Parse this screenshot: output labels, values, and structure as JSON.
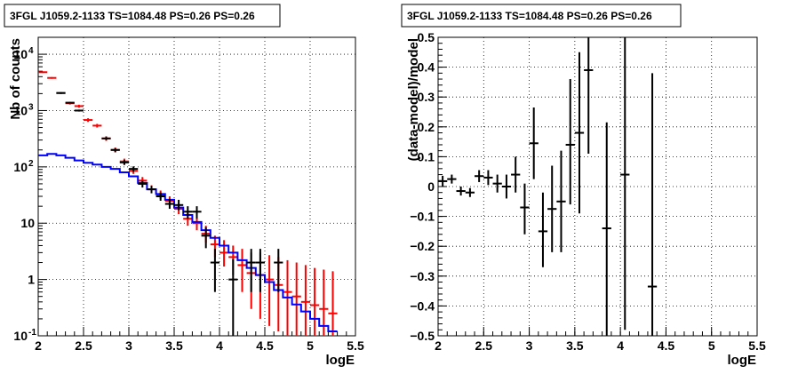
{
  "chart_data": [
    {
      "type": "scatter",
      "title": "3FGL J1059.2-1133 TS=1084.48 PS=0.26 PS=0.26",
      "xlabel": "logE",
      "ylabel": "Nb of counts",
      "xlim": [
        2,
        5.5
      ],
      "ylim": [
        0.1,
        20000
      ],
      "yscale": "log",
      "grid": true,
      "x_ticks": [
        "2",
        "2.5",
        "3",
        "3.5",
        "4",
        "4.5",
        "5",
        "5.5"
      ],
      "y_ticks": [
        {
          "value": 0.1,
          "label": "10",
          "exp": "-1"
        },
        {
          "value": 1,
          "label": "1",
          "exp": ""
        },
        {
          "value": 10,
          "label": "10",
          "exp": ""
        },
        {
          "value": 100,
          "label": "10",
          "exp": "2"
        },
        {
          "value": 1000,
          "label": "10",
          "exp": "3"
        },
        {
          "value": 10000,
          "label": "10",
          "exp": "4"
        }
      ],
      "series": [
        {
          "color": "#ff0000",
          "style": "errorbar",
          "points": [
            {
              "x": 2.05,
              "y": 4800,
              "lo": 4650,
              "hi": 4950
            },
            {
              "x": 2.15,
              "y": 3800,
              "lo": 3670,
              "hi": 3930
            },
            {
              "x": 2.25,
              "y": 2050,
              "lo": 1960,
              "hi": 2140
            },
            {
              "x": 2.35,
              "y": 1350,
              "lo": 1280,
              "hi": 1420
            },
            {
              "x": 2.45,
              "y": 1200,
              "lo": 1130,
              "hi": 1270
            },
            {
              "x": 2.55,
              "y": 680,
              "lo": 630,
              "hi": 730
            },
            {
              "x": 2.65,
              "y": 540,
              "lo": 500,
              "hi": 580
            },
            {
              "x": 2.75,
              "y": 320,
              "lo": 290,
              "hi": 350
            },
            {
              "x": 2.85,
              "y": 200,
              "lo": 180,
              "hi": 220
            },
            {
              "x": 2.95,
              "y": 125,
              "lo": 110,
              "hi": 140
            },
            {
              "x": 3.05,
              "y": 85,
              "lo": 75,
              "hi": 96
            },
            {
              "x": 3.15,
              "y": 57,
              "lo": 49,
              "hi": 66
            },
            {
              "x": 3.25,
              "y": 40,
              "lo": 34,
              "hi": 47
            },
            {
              "x": 3.35,
              "y": 32,
              "lo": 27,
              "hi": 38
            },
            {
              "x": 3.45,
              "y": 25,
              "lo": 21,
              "hi": 30
            },
            {
              "x": 3.55,
              "y": 18,
              "lo": 14.5,
              "hi": 22
            },
            {
              "x": 3.65,
              "y": 12,
              "lo": 9,
              "hi": 15
            },
            {
              "x": 3.75,
              "y": 10,
              "lo": 7.5,
              "hi": 13
            },
            {
              "x": 3.85,
              "y": 6.5,
              "lo": 4.5,
              "hi": 9
            },
            {
              "x": 3.95,
              "y": 4.2,
              "lo": 2.5,
              "hi": 6
            },
            {
              "x": 4.05,
              "y": 3.0,
              "lo": 1.7,
              "hi": 5
            },
            {
              "x": 4.15,
              "y": 2.5,
              "lo": 1.2,
              "hi": 4
            },
            {
              "x": 4.25,
              "y": 1.8,
              "lo": 0.6,
              "hi": 3.5
            },
            {
              "x": 4.35,
              "y": 1.3,
              "lo": 0.3,
              "hi": 3
            },
            {
              "x": 4.45,
              "y": 1.2,
              "lo": 0.2,
              "hi": 3
            },
            {
              "x": 4.55,
              "y": 1.0,
              "lo": 0.15,
              "hi": 2.7
            },
            {
              "x": 4.65,
              "y": 0.8,
              "lo": 0.12,
              "hi": 2.5
            },
            {
              "x": 4.75,
              "y": 0.6,
              "lo": 0.1,
              "hi": 2.2
            },
            {
              "x": 4.85,
              "y": 0.5,
              "lo": 0.1,
              "hi": 2.0
            },
            {
              "x": 4.95,
              "y": 0.4,
              "lo": 0.1,
              "hi": 1.8
            },
            {
              "x": 5.05,
              "y": 0.35,
              "lo": 0.1,
              "hi": 1.6
            },
            {
              "x": 5.15,
              "y": 0.3,
              "lo": 0.1,
              "hi": 1.5
            },
            {
              "x": 5.25,
              "y": 0.25,
              "lo": 0.1,
              "hi": 1.4
            }
          ]
        },
        {
          "color": "#0000ff",
          "style": "step",
          "points": [
            {
              "x": 2.05,
              "y": 160
            },
            {
              "x": 2.15,
              "y": 170
            },
            {
              "x": 2.25,
              "y": 160
            },
            {
              "x": 2.35,
              "y": 145
            },
            {
              "x": 2.45,
              "y": 130
            },
            {
              "x": 2.55,
              "y": 118
            },
            {
              "x": 2.65,
              "y": 110
            },
            {
              "x": 2.75,
              "y": 100
            },
            {
              "x": 2.85,
              "y": 92
            },
            {
              "x": 2.95,
              "y": 80
            },
            {
              "x": 3.05,
              "y": 68
            },
            {
              "x": 3.15,
              "y": 52
            },
            {
              "x": 3.25,
              "y": 40
            },
            {
              "x": 3.35,
              "y": 33
            },
            {
              "x": 3.45,
              "y": 26
            },
            {
              "x": 3.55,
              "y": 19
            },
            {
              "x": 3.65,
              "y": 14
            },
            {
              "x": 3.75,
              "y": 10.5
            },
            {
              "x": 3.85,
              "y": 7.5
            },
            {
              "x": 3.95,
              "y": 5.5
            },
            {
              "x": 4.05,
              "y": 4.0
            },
            {
              "x": 4.15,
              "y": 3.0
            },
            {
              "x": 4.25,
              "y": 2.2
            },
            {
              "x": 4.35,
              "y": 1.6
            },
            {
              "x": 4.45,
              "y": 1.2
            },
            {
              "x": 4.55,
              "y": 0.9
            },
            {
              "x": 4.65,
              "y": 0.65
            },
            {
              "x": 4.75,
              "y": 0.48
            },
            {
              "x": 4.85,
              "y": 0.36
            },
            {
              "x": 4.95,
              "y": 0.27
            },
            {
              "x": 5.05,
              "y": 0.2
            },
            {
              "x": 5.15,
              "y": 0.15
            },
            {
              "x": 5.25,
              "y": 0.12
            }
          ]
        },
        {
          "color": "#000000",
          "style": "errorbar",
          "points": [
            {
              "x": 2.25,
              "y": 2050,
              "lo": 2000,
              "hi": 2100
            },
            {
              "x": 2.35,
              "y": 1380,
              "lo": 1340,
              "hi": 1420
            },
            {
              "x": 2.45,
              "y": 1000,
              "lo": 960,
              "hi": 1040
            },
            {
              "x": 2.75,
              "y": 320,
              "lo": 300,
              "hi": 340
            },
            {
              "x": 2.85,
              "y": 200,
              "lo": 185,
              "hi": 215
            },
            {
              "x": 2.95,
              "y": 120,
              "lo": 108,
              "hi": 132
            },
            {
              "x": 3.05,
              "y": 92,
              "lo": 82,
              "hi": 102
            },
            {
              "x": 3.15,
              "y": 50,
              "lo": 43,
              "hi": 57
            },
            {
              "x": 3.25,
              "y": 40,
              "lo": 34,
              "hi": 46
            },
            {
              "x": 3.35,
              "y": 30,
              "lo": 25,
              "hi": 35
            },
            {
              "x": 3.45,
              "y": 22,
              "lo": 18,
              "hi": 27
            },
            {
              "x": 3.55,
              "y": 21,
              "lo": 17,
              "hi": 26
            },
            {
              "x": 3.65,
              "y": 16,
              "lo": 12,
              "hi": 20
            },
            {
              "x": 3.75,
              "y": 16,
              "lo": 12,
              "hi": 20
            },
            {
              "x": 3.85,
              "y": 6,
              "lo": 3.6,
              "hi": 8.5
            },
            {
              "x": 3.95,
              "y": 2,
              "lo": 0.6,
              "hi": 3.5
            },
            {
              "x": 4.15,
              "y": 1,
              "lo": 0.1,
              "hi": 2.3
            },
            {
              "x": 4.35,
              "y": 2,
              "lo": 0.6,
              "hi": 3.5
            },
            {
              "x": 4.45,
              "y": 2,
              "lo": 0.6,
              "hi": 3.5
            },
            {
              "x": 4.65,
              "y": 2,
              "lo": 0.6,
              "hi": 3.5
            }
          ]
        }
      ]
    },
    {
      "type": "scatter",
      "title": "3FGL J1059.2-1133 TS=1084.48 PS=0.26 PS=0.26",
      "xlabel": "logE",
      "ylabel": "(data-model)/model",
      "xlim": [
        2,
        5.5
      ],
      "ylim": [
        -0.5,
        0.5
      ],
      "yscale": "linear",
      "grid": true,
      "x_ticks": [
        "2",
        "2.5",
        "3",
        "3.5",
        "4",
        "4.5",
        "5",
        "5.5"
      ],
      "y_ticks": [
        "−0.5",
        "−0.4",
        "−0.3",
        "−0.2",
        "−0.1",
        "0",
        "0.1",
        "0.2",
        "0.3",
        "0.4",
        "0.5"
      ],
      "series": [
        {
          "color": "#000000",
          "style": "errorbar",
          "points": [
            {
              "x": 2.05,
              "y": 0.018,
              "lo": 0.0,
              "hi": 0.036
            },
            {
              "x": 2.15,
              "y": 0.025,
              "lo": 0.01,
              "hi": 0.04
            },
            {
              "x": 2.25,
              "y": -0.015,
              "lo": -0.03,
              "hi": 0.0
            },
            {
              "x": 2.35,
              "y": -0.02,
              "lo": -0.035,
              "hi": -0.005
            },
            {
              "x": 2.45,
              "y": 0.035,
              "lo": 0.015,
              "hi": 0.055
            },
            {
              "x": 2.55,
              "y": 0.03,
              "lo": 0.005,
              "hi": 0.055
            },
            {
              "x": 2.65,
              "y": 0.01,
              "lo": -0.02,
              "hi": 0.04
            },
            {
              "x": 2.75,
              "y": 0.0,
              "lo": -0.04,
              "hi": 0.04
            },
            {
              "x": 2.85,
              "y": 0.04,
              "lo": -0.02,
              "hi": 0.1
            },
            {
              "x": 2.95,
              "y": -0.07,
              "lo": -0.16,
              "hi": 0.01
            },
            {
              "x": 3.05,
              "y": 0.145,
              "lo": 0.025,
              "hi": 0.265
            },
            {
              "x": 3.15,
              "y": -0.15,
              "lo": -0.27,
              "hi": -0.02
            },
            {
              "x": 3.25,
              "y": -0.075,
              "lo": -0.22,
              "hi": 0.07
            },
            {
              "x": 3.35,
              "y": -0.05,
              "lo": -0.22,
              "hi": 0.12
            },
            {
              "x": 3.45,
              "y": 0.14,
              "lo": -0.06,
              "hi": 0.36
            },
            {
              "x": 3.55,
              "y": 0.18,
              "lo": -0.09,
              "hi": 0.45
            },
            {
              "x": 3.65,
              "y": 0.39,
              "lo": 0.11,
              "hi": 0.5
            },
            {
              "x": 3.85,
              "y": -0.14,
              "lo": -0.5,
              "hi": 0.215
            },
            {
              "x": 4.05,
              "y": 0.04,
              "lo": -0.48,
              "hi": 0.5
            },
            {
              "x": 4.35,
              "y": -0.335,
              "lo": -0.5,
              "hi": 0.38
            }
          ]
        }
      ]
    }
  ]
}
